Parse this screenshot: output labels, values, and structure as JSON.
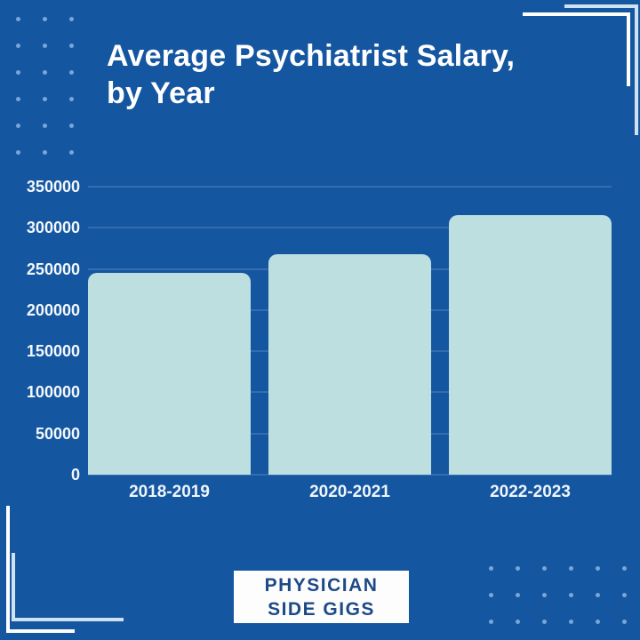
{
  "title": {
    "line1": "Average Psychiatrist Salary,",
    "line2": "by Year"
  },
  "chart_data": {
    "type": "bar",
    "title": "Average Psychiatrist Salary, by Year",
    "categories": [
      "2018-2019",
      "2020-2021",
      "2022-2023"
    ],
    "values": [
      245000,
      268000,
      315000
    ],
    "ylim": [
      0,
      350000
    ],
    "yticks": [
      0,
      50000,
      100000,
      150000,
      200000,
      250000,
      300000,
      350000
    ],
    "ytick_labels": [
      "0",
      "50000",
      "100000",
      "150000",
      "200000",
      "250000",
      "300000",
      "350000"
    ],
    "xlabel": "",
    "ylabel": "",
    "grid": "horizontal",
    "legend": "none",
    "bar_color": "#bedfe0",
    "background_color": "#1556a1",
    "label_color": "#ffffff"
  },
  "brand": {
    "line1": "PHYSICIAN",
    "line2": "SIDE GIGS"
  },
  "colors": {
    "background": "#1556a1",
    "bar": "#bedfe0",
    "dots": "#79a5d8",
    "frame_inner": "#ffffff",
    "frame_outer": "#cfe2f2",
    "badge_text": "#1d4a87"
  }
}
